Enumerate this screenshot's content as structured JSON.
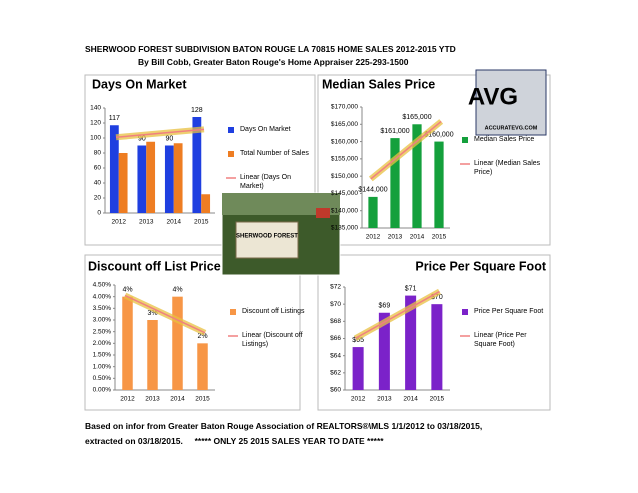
{
  "header": {
    "title": "SHERWOOD FOREST SUBDIVISION BATON ROUGE LA 70815 HOME SALES 2012-2015 YTD",
    "subtitle": "By Bill Cobb, Greater Baton Rouge's Home Appraiser 225-293-1500"
  },
  "footer": {
    "line1": "Based on infor from Greater Baton Rouge Association of REALTORS®\\MLS 1/1/2012 to 03/18/2015,",
    "line2": "extracted on 03/18/2015.     ***** ONLY 25 2015 SALES YEAR TO DATE *****"
  },
  "photo": {
    "sign": "SHERWOOD FOREST"
  },
  "logo": {
    "letters": "AVG",
    "url": "ACCURATEVG.COM"
  },
  "chart_data": [
    {
      "type": "bar",
      "title": "Days On Market",
      "categories": [
        "2012",
        "2013",
        "2014",
        "2015"
      ],
      "series": [
        {
          "name": "Days On Market",
          "color": "#1f3fe0",
          "values": [
            117,
            90,
            90,
            128
          ],
          "data_labels": true
        },
        {
          "name": "Total Number of Sales",
          "color": "#ee7d22",
          "values": [
            80,
            95,
            93,
            25
          ]
        }
      ],
      "trendline": {
        "name": "Linear (Days On Market)",
        "color": "#f08080"
      },
      "ylim": [
        0,
        140
      ],
      "yticks": [
        0,
        20,
        40,
        60,
        80,
        100,
        120,
        140
      ],
      "grid": false
    },
    {
      "type": "bar",
      "title": "Median Sales Price",
      "categories": [
        "2012",
        "2013",
        "2014",
        "2015"
      ],
      "series": [
        {
          "name": "Median Sales Price",
          "color": "#14a03c",
          "values": [
            144000,
            161000,
            165000,
            160000
          ],
          "value_labels": [
            "$144,000",
            "$161,000",
            "$165,000",
            "$160,000"
          ]
        }
      ],
      "trendline": {
        "name": "Linear (Median Sales Price)",
        "color": "#f08080"
      },
      "ylim": [
        135000,
        170000
      ],
      "yticks": [
        {
          "value": 135000,
          "label": "$135,000"
        },
        {
          "value": 140000,
          "label": "$140,000"
        },
        {
          "value": 145000,
          "label": "$145,000"
        },
        {
          "value": 150000,
          "label": "$150,000"
        },
        {
          "value": 155000,
          "label": "$155,000"
        },
        {
          "value": 160000,
          "label": "$160,000"
        },
        {
          "value": 165000,
          "label": "$165,000"
        },
        {
          "value": 170000,
          "label": "$170,000"
        }
      ],
      "grid": false
    },
    {
      "type": "bar",
      "title": "Discount off List Price",
      "categories": [
        "2012",
        "2013",
        "2014",
        "2015"
      ],
      "series": [
        {
          "name": "Discount off Listings",
          "color": "#f79646",
          "values": [
            4,
            3,
            4,
            2
          ],
          "value_labels": [
            "4%",
            "3%",
            "4%",
            "2%"
          ]
        }
      ],
      "trendline": {
        "name": "Linear (Discount off Listings)",
        "color": "#f08080"
      },
      "ylim": [
        0,
        4.5
      ],
      "yticks": [
        {
          "value": 0,
          "label": "0.00%"
        },
        {
          "value": 0.5,
          "label": "0.50%"
        },
        {
          "value": 1,
          "label": "1.00%"
        },
        {
          "value": 1.5,
          "label": "1.50%"
        },
        {
          "value": 2,
          "label": "2.00%"
        },
        {
          "value": 2.5,
          "label": "2.50%"
        },
        {
          "value": 3,
          "label": "3.00%"
        },
        {
          "value": 3.5,
          "label": "3.50%"
        },
        {
          "value": 4,
          "label": "4.00%"
        },
        {
          "value": 4.5,
          "label": "4.50%"
        }
      ],
      "grid": false
    },
    {
      "type": "bar",
      "title": "Price Per Square Foot",
      "categories": [
        "2012",
        "2013",
        "2014",
        "2015"
      ],
      "series": [
        {
          "name": "Price Per Square Foot",
          "color": "#7b22c9",
          "values": [
            65,
            69,
            71,
            70
          ],
          "value_labels": [
            "$65",
            "$69",
            "$71",
            "$70"
          ]
        }
      ],
      "trendline": {
        "name": "Linear (Price Per Square Foot)",
        "color": "#f08080"
      },
      "ylim": [
        60,
        72
      ],
      "yticks": [
        {
          "value": 60,
          "label": "$60"
        },
        {
          "value": 62,
          "label": "$62"
        },
        {
          "value": 64,
          "label": "$64"
        },
        {
          "value": 66,
          "label": "$66"
        },
        {
          "value": 68,
          "label": "$68"
        },
        {
          "value": 70,
          "label": "$70"
        },
        {
          "value": 72,
          "label": "$72"
        }
      ],
      "grid": false
    }
  ]
}
